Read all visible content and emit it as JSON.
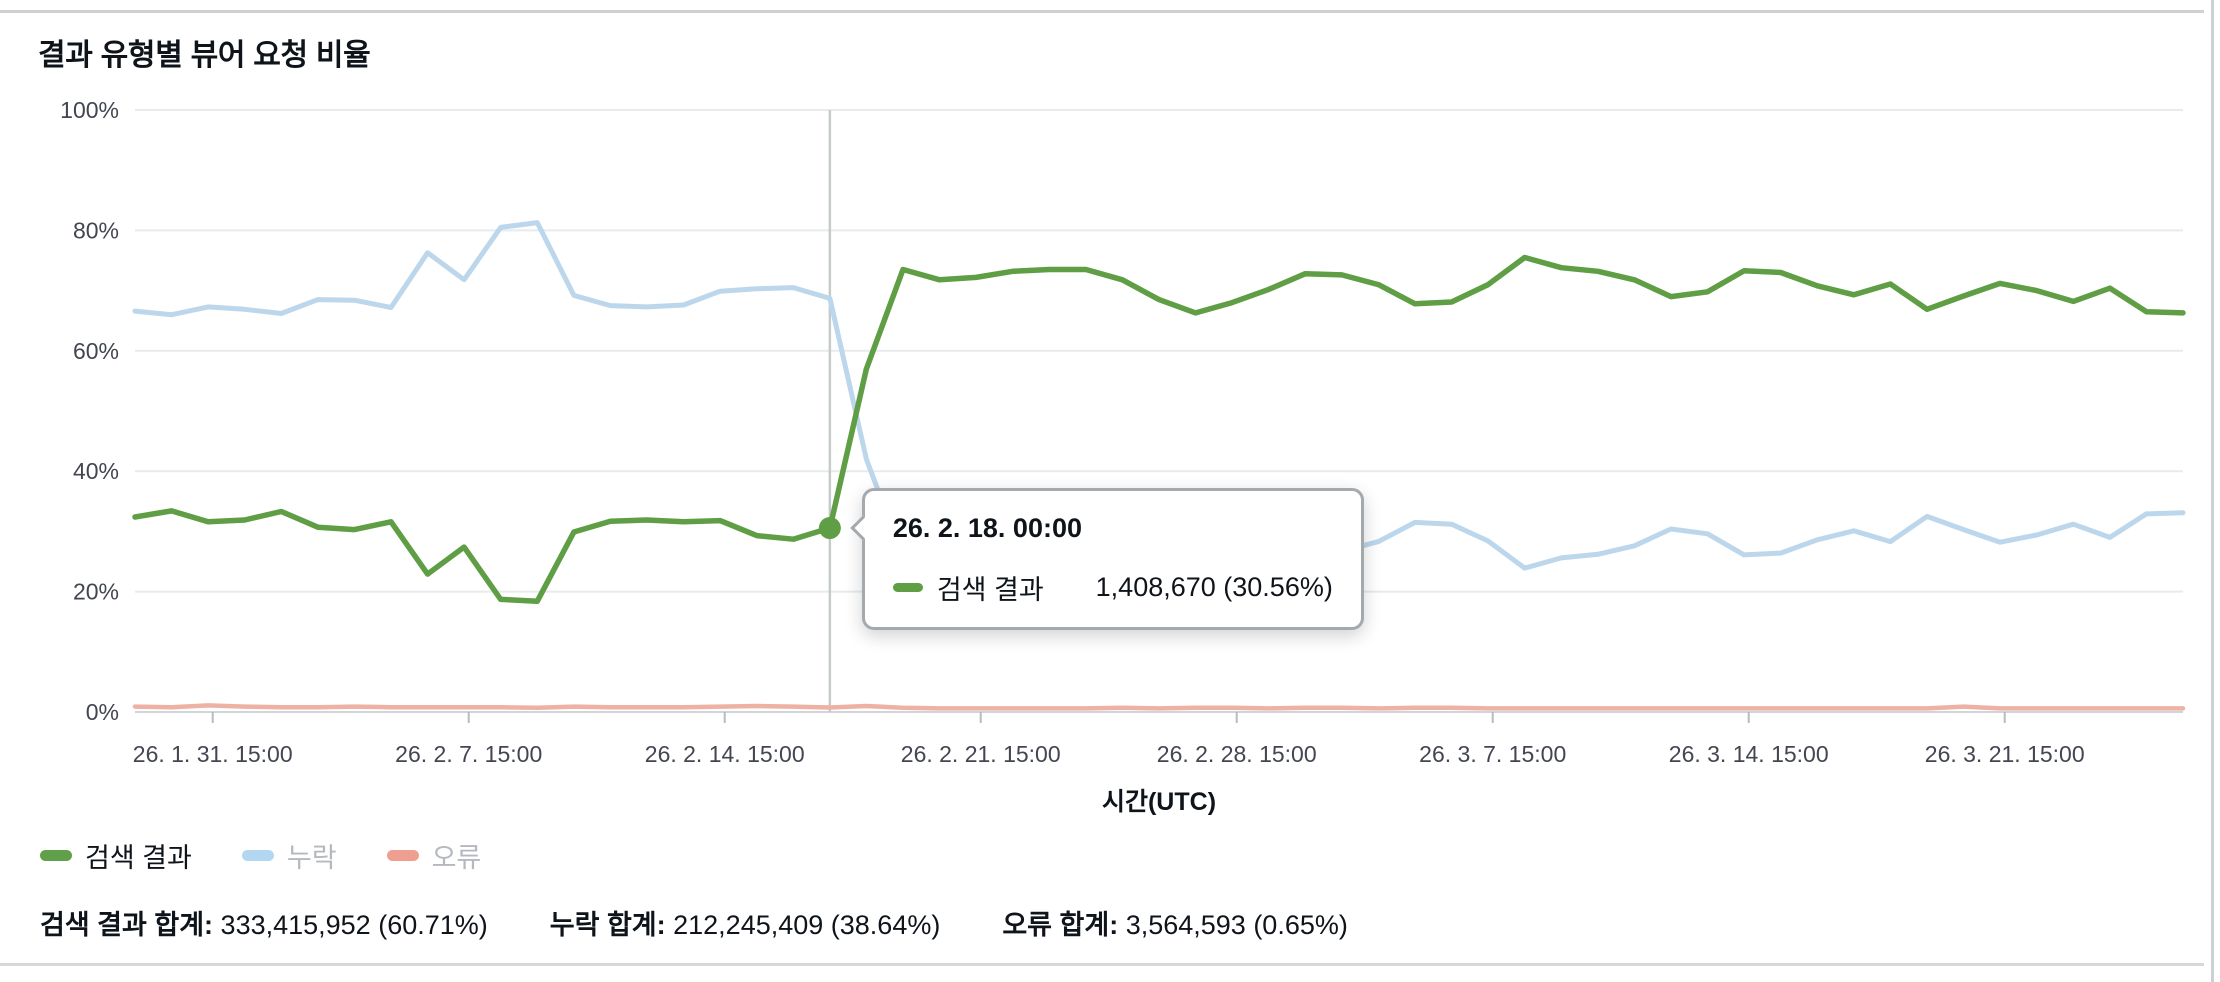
{
  "title": "결과 유형별 뷰어 요청 비율",
  "colors": {
    "green_line": "#5f9e44",
    "blue_line": "#bcd6ec",
    "red_line": "#eeb2a4",
    "legend_green": "#60a04a",
    "legend_blue": "#b2d7f0",
    "legend_red": "#ef9f92",
    "grid": "#e8eaec",
    "baseline": "#d1d5d9",
    "tick": "#b7bcc1",
    "axis_text": "#424650",
    "dim_text": "#b5b9bf",
    "dark_text": "#0f141a",
    "crosshair": "#c6cacd"
  },
  "chart_data": {
    "type": "line",
    "title": "결과 유형별 뷰어 요청 비율",
    "xlabel": "시간(UTC)",
    "ylabel": "",
    "ylim": [
      0,
      100
    ],
    "grid": "horizontal",
    "legend_position": "bottom",
    "y_ticks": [
      "100%",
      "80%",
      "60%",
      "40%",
      "20%",
      "0%"
    ],
    "x_ticks": [
      {
        "label": "26. 1. 31. 15:00",
        "index": 2.125
      },
      {
        "label": "26. 2. 7. 15:00",
        "index": 9.125
      },
      {
        "label": "26. 2. 14. 15:00",
        "index": 16.125
      },
      {
        "label": "26. 2. 21. 15:00",
        "index": 23.125
      },
      {
        "label": "26. 2. 28. 15:00",
        "index": 30.125
      },
      {
        "label": "26. 3. 7. 15:00",
        "index": 37.125
      },
      {
        "label": "26. 3. 14. 15:00",
        "index": 44.125
      },
      {
        "label": "26. 3. 21. 15:00",
        "index": 51.125
      }
    ],
    "unit": "percent",
    "series": [
      {
        "name": "검색 결과",
        "color": "#5f9e44",
        "values": [
          32.4,
          33.4,
          31.6,
          31.9,
          33.3,
          30.7,
          30.3,
          31.6,
          22.9,
          27.4,
          18.7,
          18.4,
          29.9,
          31.7,
          31.9,
          31.6,
          31.8,
          29.3,
          28.7,
          30.56,
          57.0,
          73.5,
          71.8,
          72.2,
          73.2,
          73.5,
          73.5,
          71.8,
          68.5,
          66.3,
          68.0,
          70.2,
          72.8,
          72.6,
          71.0,
          67.8,
          68.1,
          71.0,
          75.5,
          73.8,
          73.2,
          71.8,
          69.0,
          69.8,
          73.3,
          73.0,
          70.8,
          69.3,
          71.1,
          66.9,
          69.1,
          71.2,
          70.0,
          68.2,
          70.4,
          66.5,
          66.3
        ]
      },
      {
        "name": "누락",
        "color": "#bcd6ec",
        "values": [
          66.6,
          66.0,
          67.3,
          66.9,
          66.2,
          68.5,
          68.4,
          67.2,
          76.3,
          71.8,
          80.5,
          81.3,
          69.2,
          67.5,
          67.3,
          67.6,
          69.9,
          70.3,
          70.5,
          68.7,
          42.0,
          25.8,
          27.6,
          27.2,
          26.2,
          25.9,
          25.9,
          27.5,
          30.9,
          33.0,
          31.3,
          29.2,
          26.5,
          26.7,
          28.3,
          31.5,
          31.2,
          28.4,
          23.9,
          25.6,
          26.2,
          27.6,
          30.4,
          29.6,
          26.1,
          26.4,
          28.6,
          30.1,
          28.3,
          32.5,
          30.3,
          28.2,
          29.4,
          31.2,
          29.0,
          32.9,
          33.1
        ]
      },
      {
        "name": "오류",
        "color": "#eeb2a4",
        "values": [
          0.9,
          0.8,
          1.1,
          0.9,
          0.8,
          0.8,
          0.9,
          0.8,
          0.8,
          0.8,
          0.8,
          0.7,
          0.9,
          0.8,
          0.8,
          0.8,
          0.9,
          1.0,
          0.9,
          0.74,
          1.0,
          0.7,
          0.6,
          0.6,
          0.6,
          0.6,
          0.6,
          0.7,
          0.6,
          0.7,
          0.7,
          0.6,
          0.7,
          0.7,
          0.6,
          0.7,
          0.7,
          0.6,
          0.6,
          0.6,
          0.6,
          0.6,
          0.6,
          0.6,
          0.6,
          0.6,
          0.6,
          0.6,
          0.6,
          0.6,
          0.9,
          0.6,
          0.6,
          0.6,
          0.6,
          0.6,
          0.6
        ]
      }
    ]
  },
  "x_axis": {
    "title": "시간(UTC)"
  },
  "tooltip": {
    "title": "26. 2. 18. 00:00",
    "series": "검색 결과",
    "value": "1,408,670 (30.56%)",
    "point_index": 19,
    "point_percent": 30.56
  },
  "legend": [
    {
      "label": "검색 결과",
      "color": "#60a04a",
      "dim": false
    },
    {
      "label": "누락",
      "color": "#b2d7f0",
      "dim": true
    },
    {
      "label": "오류",
      "color": "#ef9f92",
      "dim": true
    }
  ],
  "summary": [
    {
      "label": "검색 결과 합계:",
      "value": "333,415,952 (60.71%)"
    },
    {
      "label": "누락 합계:",
      "value": "212,245,409 (38.64%)"
    },
    {
      "label": "오류 합계:",
      "value": "3,564,593 (0.65%)"
    }
  ]
}
